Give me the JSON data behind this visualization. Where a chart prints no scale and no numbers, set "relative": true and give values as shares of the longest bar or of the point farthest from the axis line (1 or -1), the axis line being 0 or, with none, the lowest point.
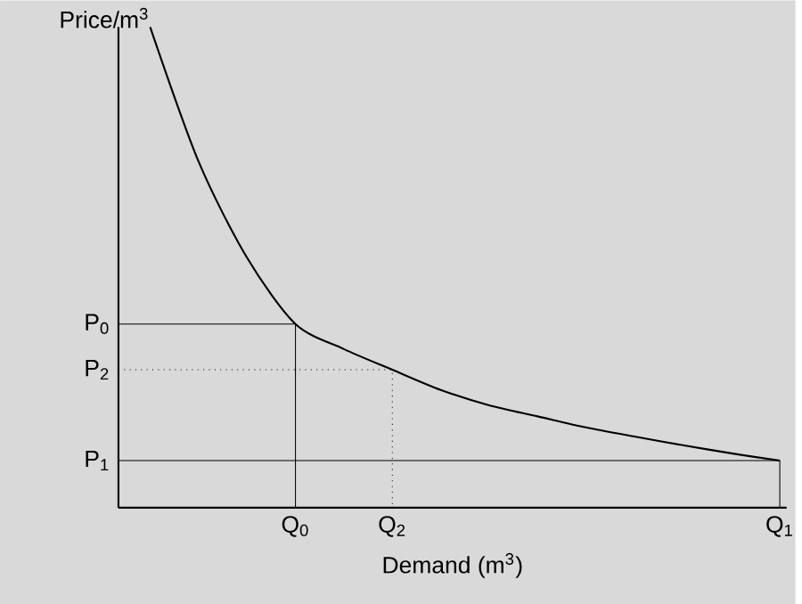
{
  "chart_data": {
    "type": "line",
    "xlabel": "Demand (m$^{3}$)",
    "ylabel": "Price/m$^{3}$",
    "relative": true,
    "categories": [
      null,
      null,
      null,
      "Q$_{0}$",
      null,
      "Q$_{2}$",
      null,
      null,
      null,
      null,
      null,
      null,
      null,
      "Q$_{1}$"
    ],
    "series": [
      {
        "color": "#000000",
        "values": [
          1.0,
          0.72,
          0.52,
          0.382,
          0.33,
          0.287,
          0.245,
          0.213,
          0.19,
          0.167,
          0.148,
          0.13,
          0.113,
          0.098
        ]
      }
    ],
    "ref_lines": [
      {
        "axis": "y",
        "value": 0.382,
        "label": "P$_{0}$",
        "line_style": "solid"
      },
      {
        "axis": "y",
        "value": 0.287,
        "label": "P$_{2}$",
        "line_style": "dotted"
      },
      {
        "axis": "y",
        "value": 0.098,
        "label": "P$_{1}$",
        "line_style": "solid"
      }
    ],
    "grid": false,
    "marker": "none",
    "line_style": "solid"
  }
}
